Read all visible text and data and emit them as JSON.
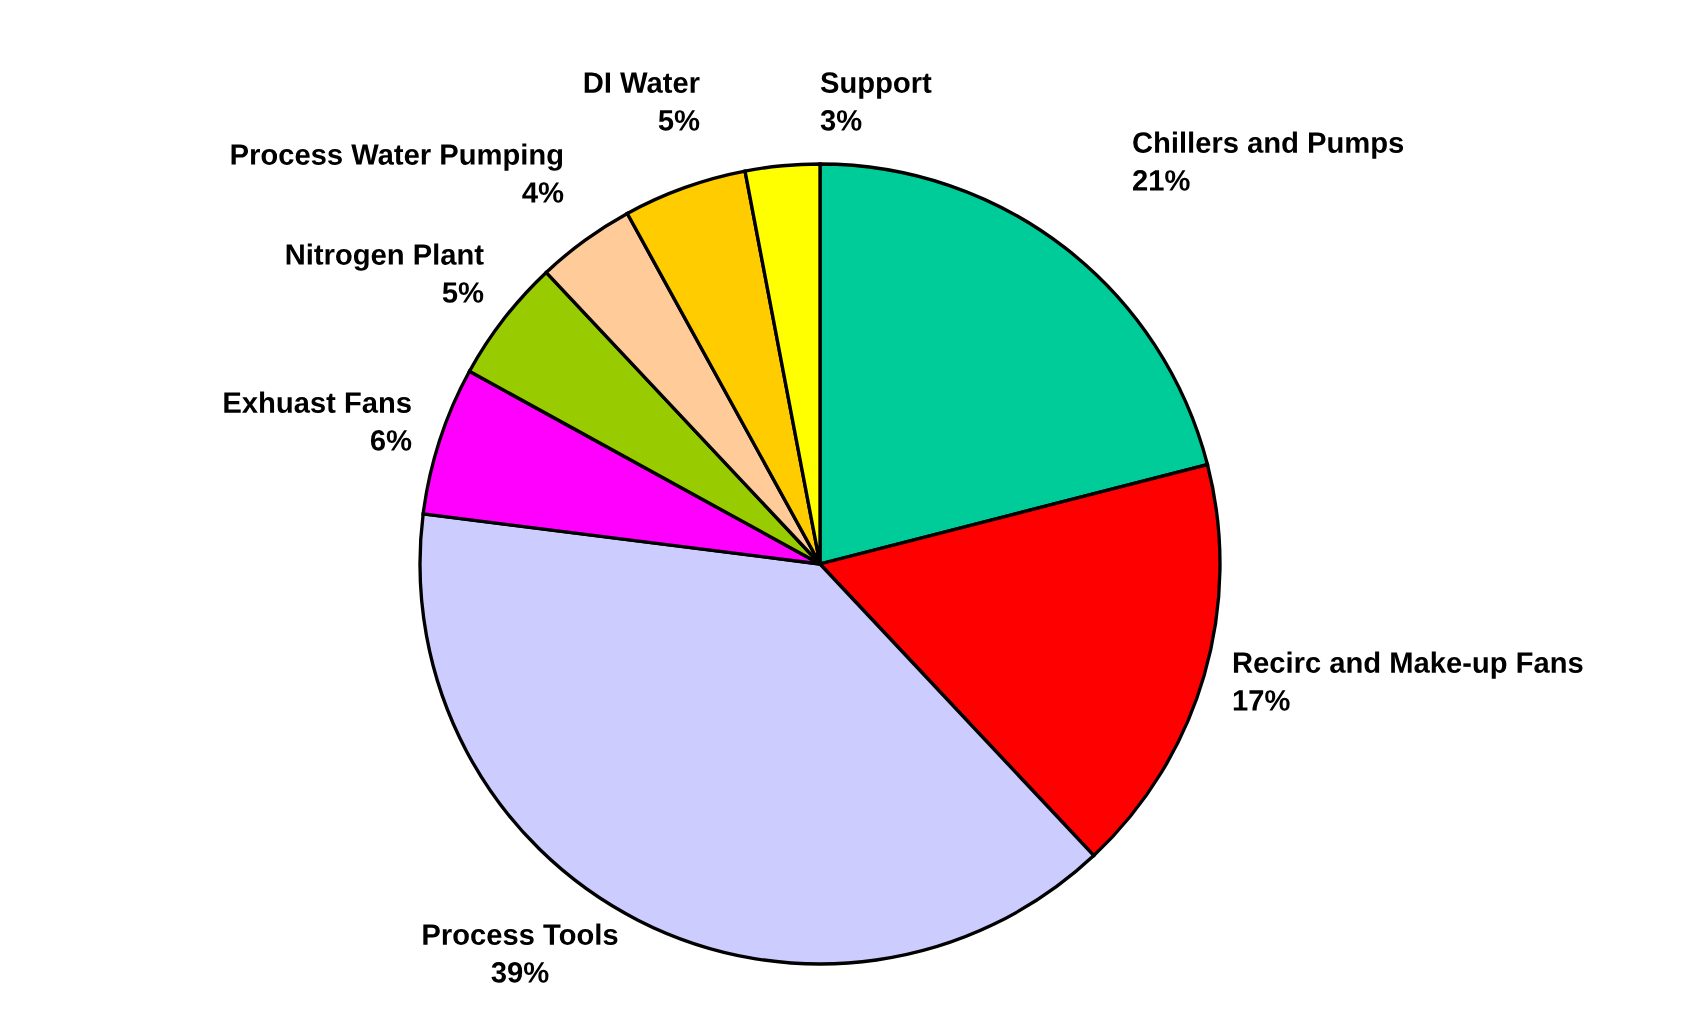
{
  "chart_data": {
    "type": "pie",
    "categories": [
      "Chillers and Pumps",
      "Recirc and Make-up Fans",
      "Process Tools",
      "Exhuast Fans",
      "Nitrogen Plant",
      "Process Water Pumping",
      "DI Water",
      "Support"
    ],
    "values": [
      21,
      17,
      39,
      6,
      5,
      4,
      5,
      3
    ],
    "colors": [
      "#00cc99",
      "#ff0000",
      "#ccccff",
      "#ff00ff",
      "#99cc00",
      "#ffcc99",
      "#ffcc00",
      "#ffff00"
    ],
    "value_labels": [
      "21%",
      "17%",
      "39%",
      "6%",
      "5%",
      "4%",
      "5%",
      "3%"
    ],
    "legend": false
  }
}
